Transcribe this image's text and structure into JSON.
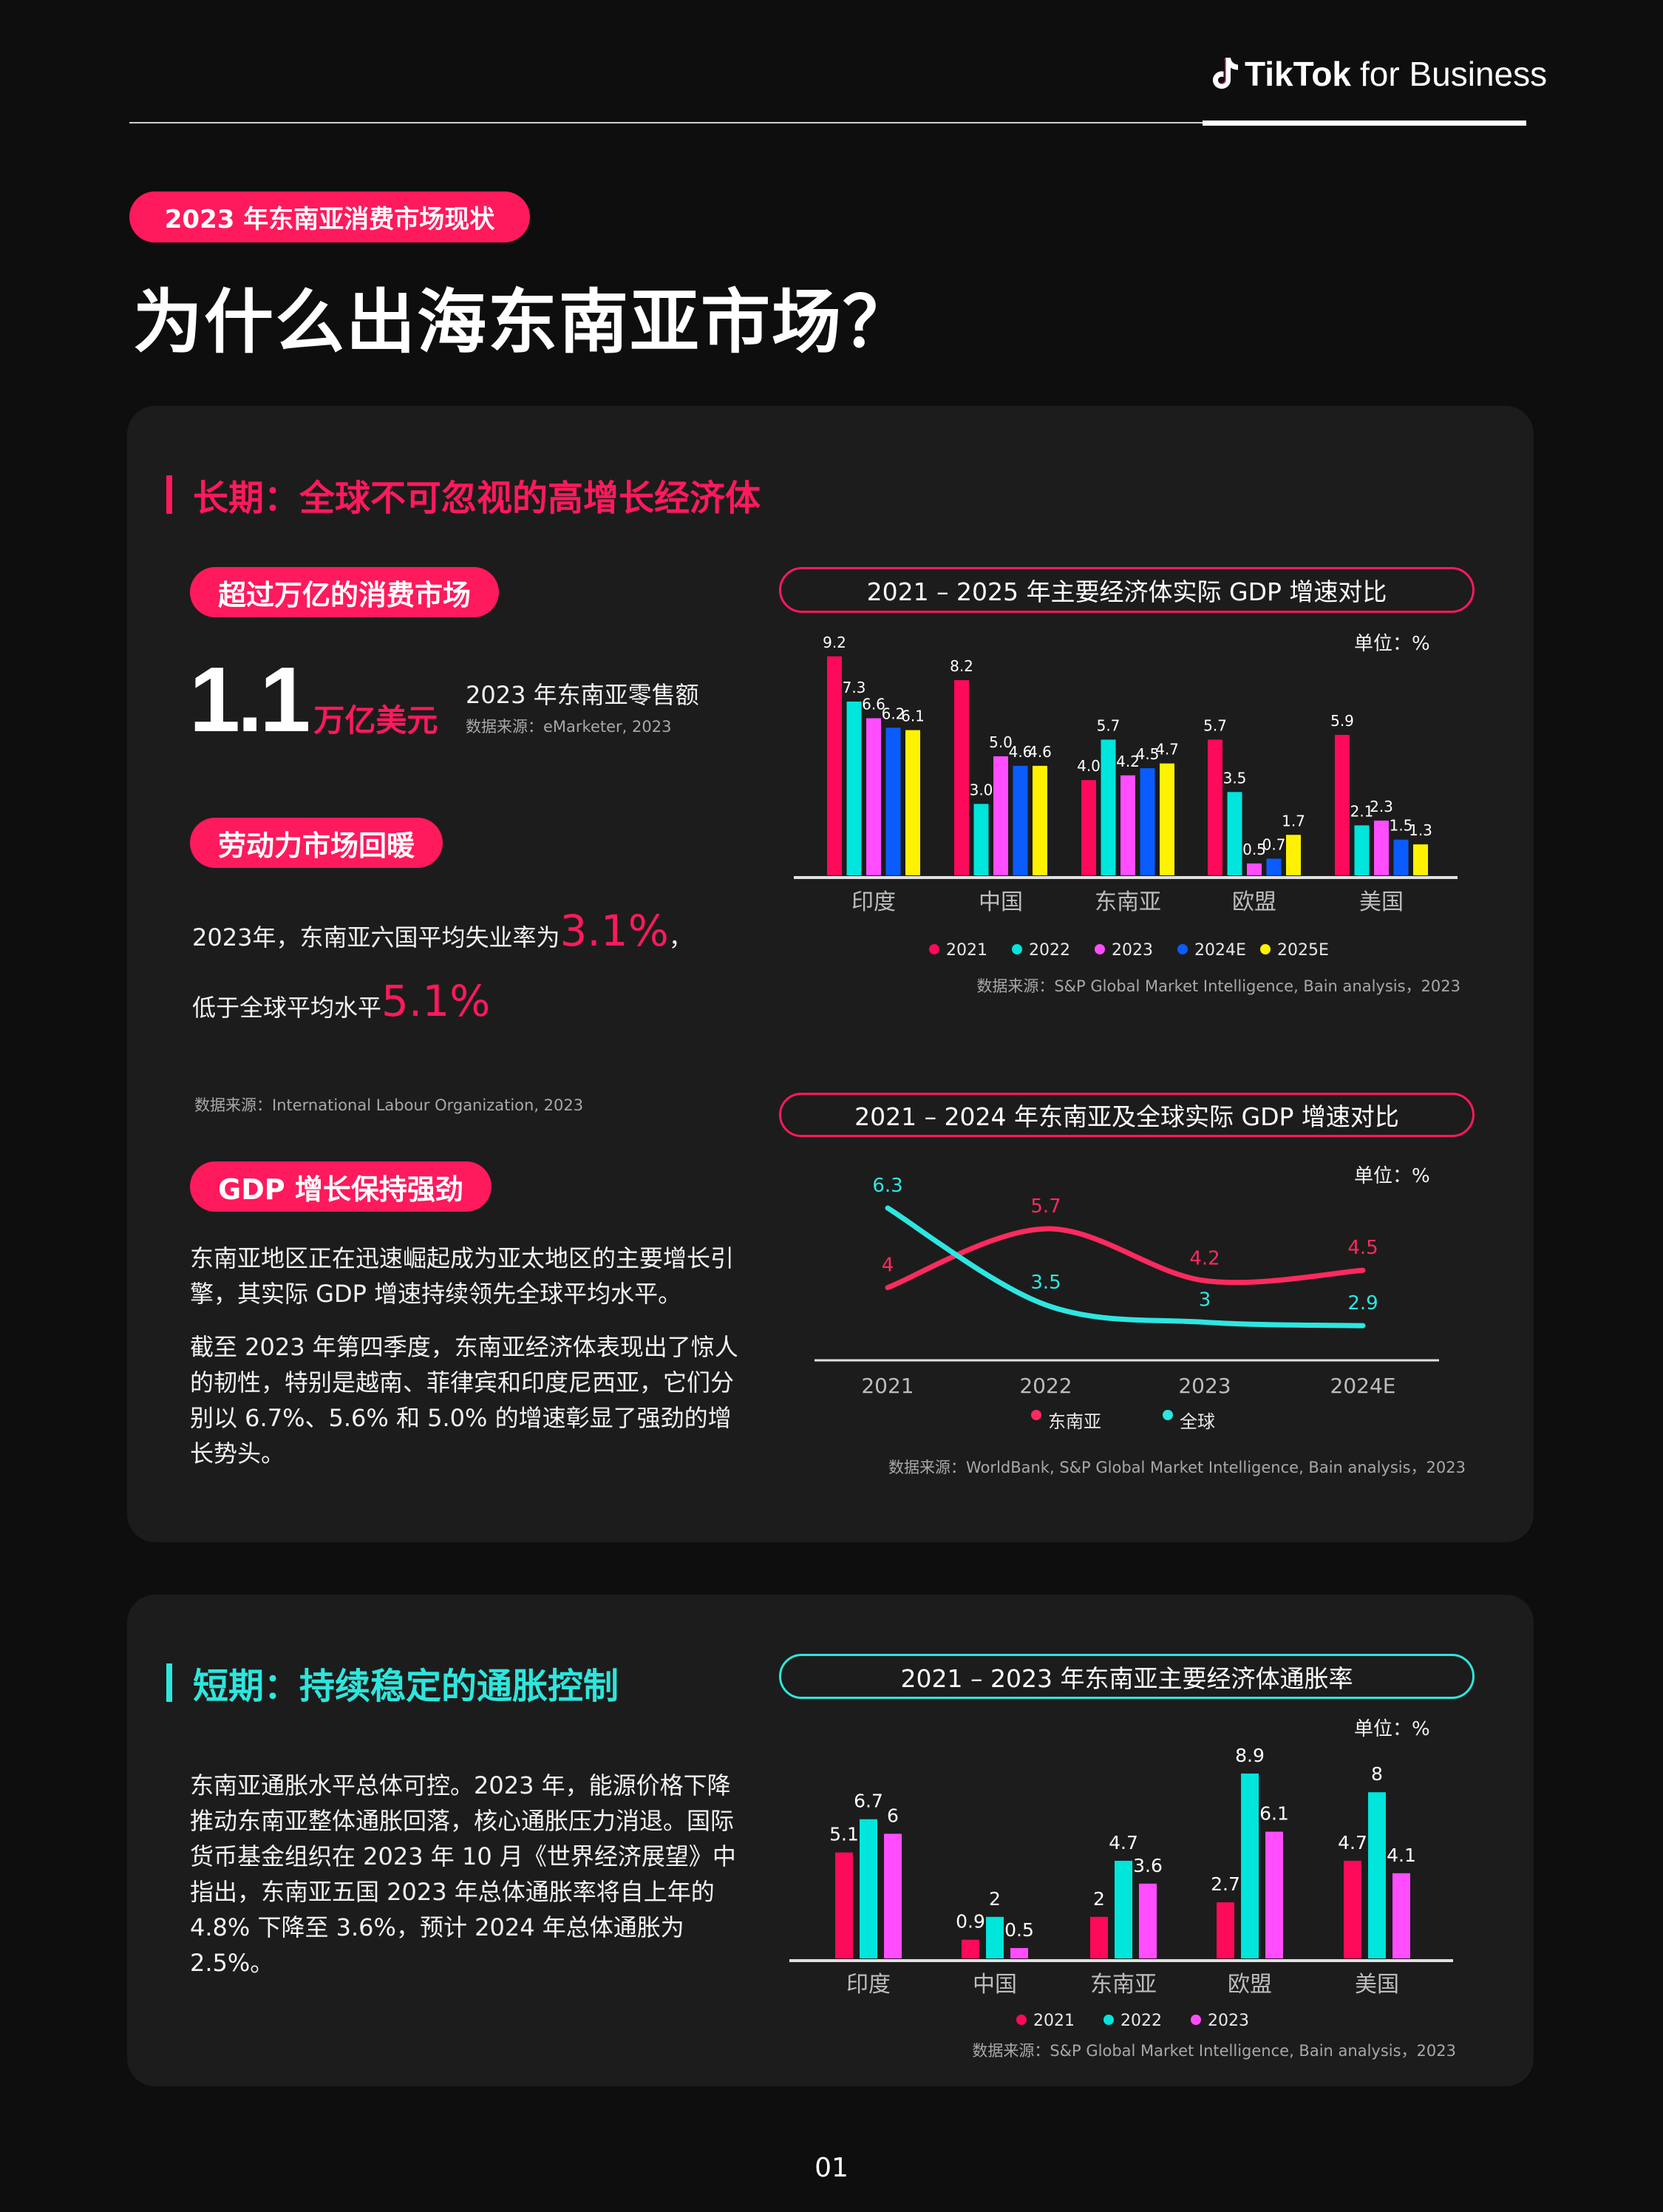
{
  "header": {
    "logo_brand": "TikTok",
    "logo_suffix": "for Business"
  },
  "tag": "2023 年东南亚消费市场现状",
  "page_title": "为什么出海东南亚市场？",
  "colors": {
    "pink": "#fe1a5c",
    "cyan": "#00e5dc",
    "magenta": "#ff4dff",
    "blue": "#0a5cff",
    "yellow": "#fff200"
  },
  "long_term": {
    "heading": "长期：全球不可忽视的高增长经济体",
    "consumer": {
      "pill": "超过万亿的消费市场",
      "value": "1.1",
      "unit": "万亿美元",
      "desc": "2023 年东南亚零售额",
      "source": "数据来源：eMarketer, 2023"
    },
    "labor": {
      "pill": "劳动力市场回暖",
      "line1_pre": "2023年，东南亚六国平均失业率为",
      "line1_value": "3.1%",
      "line1_post": "，",
      "line2_pre": "低于全球平均水平",
      "line2_value": "5.1%",
      "source": "数据来源：International Labour Organization, 2023"
    },
    "gdp": {
      "pill": "GDP 增长保持强劲",
      "para1": "东南亚地区正在迅速崛起成为亚太地区的主要增长引擎，其实际 GDP 增速持续领先全球平均水平。",
      "para2": "截至 2023 年第四季度，东南亚经济体表现出了惊人的韧性，特别是越南、菲律宾和印度尼西亚，它们分别以 6.7%、5.6% 和 5.0% 的增速彰显了强劲的增长势头。"
    }
  },
  "short_term": {
    "heading": "短期：持续稳定的通胀控制",
    "para": "东南亚通胀水平总体可控。2023 年，能源价格下降推动东南亚整体通胀回落，核心通胀压力消退。国际货币基金组织在 2023 年 10 月《世界经济展望》中指出，东南亚五国 2023 年总体通胀率将自上年的 4.8% 下降至 3.6%，预计 2024 年总体通胀为 2.5%。"
  },
  "chart_data": [
    {
      "type": "bar",
      "title": "2021 – 2025 年主要经济体实际 GDP 增速对比",
      "unit_label": "单位：%",
      "categories": [
        "印度",
        "中国",
        "东南亚",
        "欧盟",
        "美国"
      ],
      "series": [
        {
          "name": "2021",
          "color": "#fe0a5a",
          "values": [
            9.2,
            8.2,
            4.0,
            5.7,
            5.9
          ]
        },
        {
          "name": "2022",
          "color": "#00e5dc",
          "values": [
            7.3,
            3.0,
            5.7,
            3.5,
            2.1
          ]
        },
        {
          "name": "2023",
          "color": "#ff4dff",
          "values": [
            6.6,
            5.0,
            4.2,
            0.5,
            2.3
          ]
        },
        {
          "name": "2024E",
          "color": "#0a5cff",
          "values": [
            6.2,
            4.6,
            4.5,
            0.7,
            1.5
          ]
        },
        {
          "name": "2025E",
          "color": "#fff200",
          "values": [
            6.1,
            4.6,
            4.7,
            1.7,
            1.3
          ]
        }
      ],
      "value_labels": [
        [
          "9.2",
          "8.2",
          "4.0",
          "5.7",
          "5.9"
        ],
        [
          "7.3",
          "3.0",
          "5.7",
          "3.5",
          "2.1"
        ],
        [
          "6.6",
          "5.0",
          "4.2",
          "0.5",
          "2.3"
        ],
        [
          "6.2",
          "4.6",
          "4.5",
          "0.7",
          "1.5"
        ],
        [
          "6.1",
          "4.6",
          "4.7",
          "1.7",
          "1.3"
        ]
      ],
      "legend": "bottom",
      "grid": false,
      "source": "数据来源：S&P Global Market Intelligence, Bain analysis，2023"
    },
    {
      "type": "line",
      "title": "2021 – 2024 年东南亚及全球实际 GDP 增速对比",
      "unit_label": "单位：%",
      "x": [
        "2021",
        "2022",
        "2023",
        "2024E"
      ],
      "series": [
        {
          "name": "东南亚",
          "color": "#fe2a5e",
          "values": [
            4,
            5.7,
            4.2,
            4.5
          ],
          "labels": [
            "4",
            "5.7",
            "4.2",
            "4.5"
          ]
        },
        {
          "name": "全球",
          "color": "#2ee6e0",
          "values": [
            6.3,
            3.5,
            3,
            2.9
          ],
          "labels": [
            "6.3",
            "3.5",
            "3",
            "2.9"
          ]
        }
      ],
      "smooth": true,
      "legend": "bottom",
      "grid": false,
      "source": "数据来源：WorldBank, S&P Global Market Intelligence, Bain analysis，2023"
    },
    {
      "type": "bar",
      "title": "2021 – 2023 年东南亚主要经济体通胀率",
      "unit_label": "单位：%",
      "categories": [
        "印度",
        "中国",
        "东南亚",
        "欧盟",
        "美国"
      ],
      "series": [
        {
          "name": "2021",
          "color": "#fe0a5a",
          "values": [
            5.1,
            0.9,
            2,
            2.7,
            4.7
          ]
        },
        {
          "name": "2022",
          "color": "#00e5dc",
          "values": [
            6.7,
            2,
            4.7,
            8.9,
            8
          ]
        },
        {
          "name": "2023",
          "color": "#ff4dff",
          "values": [
            6,
            0.5,
            3.6,
            6.1,
            4.1
          ]
        }
      ],
      "value_labels": [
        [
          "5.1",
          "0.9",
          "2",
          "2.7",
          "4.7"
        ],
        [
          "6.7",
          "2",
          "4.7",
          "8.9",
          "8"
        ],
        [
          "6",
          "0.5",
          "3.6",
          "6.1",
          "4.1"
        ]
      ],
      "legend": "bottom",
      "grid": false,
      "source": "数据来源：S&P Global Market Intelligence, Bain analysis，2023"
    }
  ],
  "page_number": "01"
}
